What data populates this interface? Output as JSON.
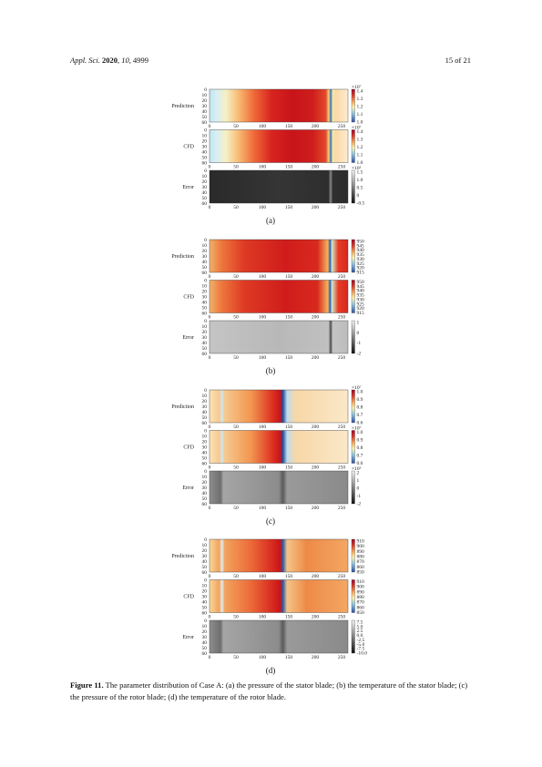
{
  "header": {
    "journal": "Appl. Sci.",
    "year": "2020",
    "volume": "10",
    "article": "4999",
    "page": "15 of 21"
  },
  "figure": {
    "row_labels": [
      "Prediction",
      "CFD",
      "Error"
    ],
    "y_ticks": [
      "0",
      "10",
      "20",
      "30",
      "40",
      "50",
      "60"
    ],
    "x_ticks": [
      "0",
      "50",
      "100",
      "150",
      "200",
      "250"
    ],
    "panels": [
      {
        "id": "a",
        "label": "(a)",
        "colorbars": [
          {
            "exponent": "×10⁷",
            "ticks": [
              "1.4",
              "1.3",
              "1.2",
              "1.1",
              "1.0"
            ]
          },
          {
            "exponent": "×10⁷",
            "ticks": [
              "1.4",
              "1.3",
              "1.2",
              "1.1",
              "1.0"
            ]
          },
          {
            "exponent": "×10⁵",
            "ticks": [
              "1.5",
              "1.0",
              "0.5",
              "0",
              "-0.5"
            ]
          }
        ]
      },
      {
        "id": "b",
        "label": "(b)",
        "colorbars": [
          {
            "exponent": "",
            "ticks": [
              "950",
              "945",
              "940",
              "935",
              "930",
              "925",
              "920",
              "915"
            ]
          },
          {
            "exponent": "",
            "ticks": [
              "950",
              "945",
              "940",
              "935",
              "930",
              "925",
              "920",
              "915"
            ]
          },
          {
            "exponent": "",
            "ticks": [
              "1",
              "0",
              "-1",
              "-2"
            ]
          }
        ]
      },
      {
        "id": "c",
        "label": "(c)",
        "colorbars": [
          {
            "exponent": "×10⁷",
            "ticks": [
              "1.0",
              "0.9",
              "0.8",
              "0.7",
              "0.6"
            ]
          },
          {
            "exponent": "×10⁷",
            "ticks": [
              "1.0",
              "0.9",
              "0.8",
              "0.7",
              "0.6"
            ]
          },
          {
            "exponent": "×10⁵",
            "ticks": [
              "2",
              "1",
              "0",
              "-1",
              "-2"
            ]
          }
        ]
      },
      {
        "id": "d",
        "label": "(d)",
        "colorbars": [
          {
            "exponent": "",
            "ticks": [
              "910",
              "900",
              "890",
              "880",
              "870",
              "860",
              "850"
            ]
          },
          {
            "exponent": "",
            "ticks": [
              "910",
              "900",
              "890",
              "880",
              "870",
              "860",
              "850"
            ]
          },
          {
            "exponent": "",
            "ticks": [
              "7.5",
              "5.0",
              "2.5",
              "0.0",
              "-2.5",
              "-5.0",
              "-7.5",
              "-10.0"
            ]
          }
        ]
      }
    ]
  },
  "caption": {
    "label": "Figure 11.",
    "text": "The parameter distribution of Case A: (a) the pressure of the stator blade; (b) the temperature of the stator blade; (c) the pressure of the rotor blade; (d) the temperature of the rotor blade."
  }
}
